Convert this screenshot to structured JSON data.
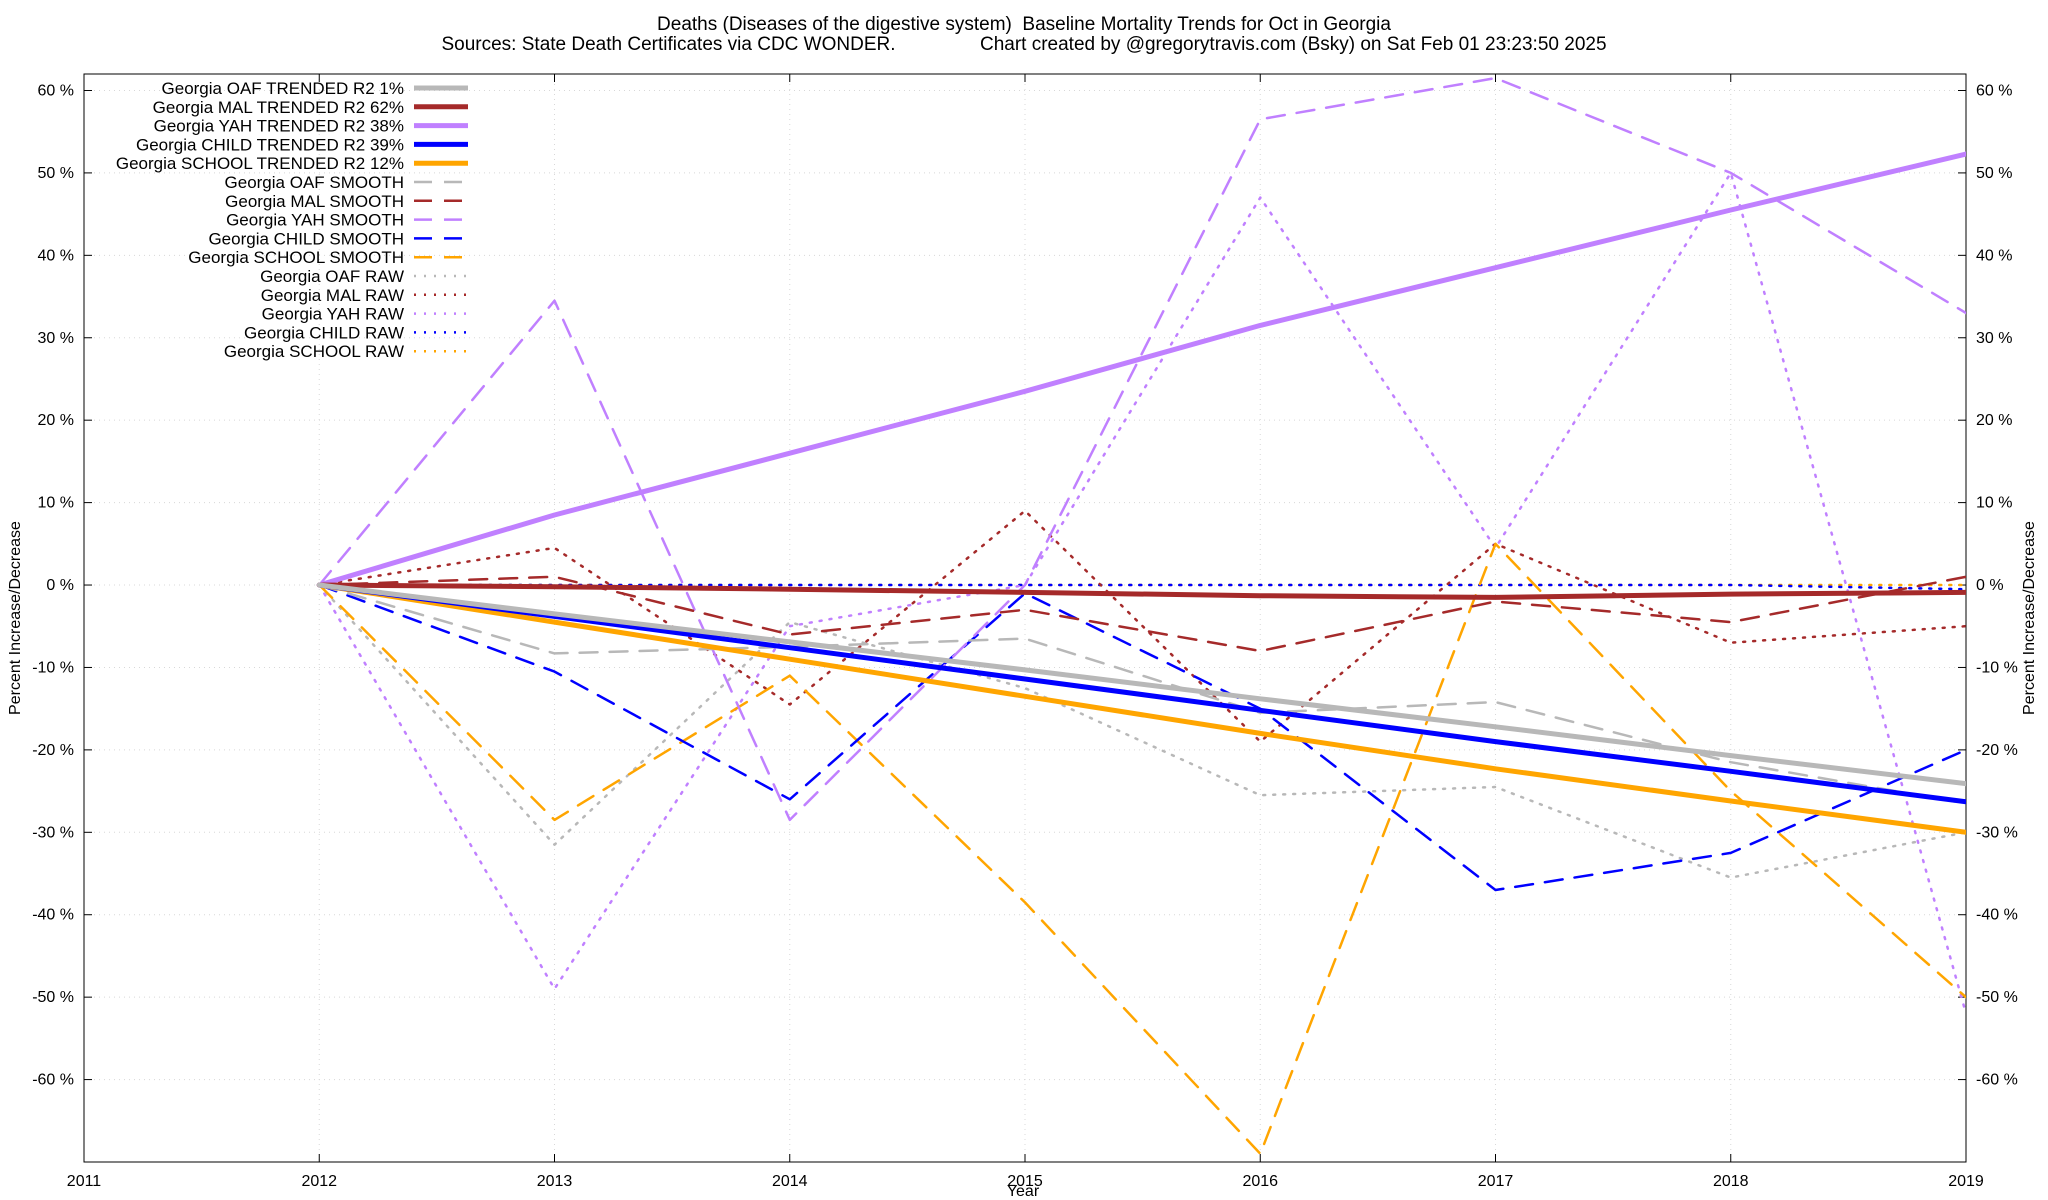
{
  "chart_data": {
    "type": "line",
    "title": "Deaths (Diseases of the digestive system)  Baseline Mortality Trends for Oct in Georgia",
    "subtitle": "Sources: State Death Certificates via CDC WONDER.                Chart created by @gregorytravis.com (Bsky) on Sat Feb 01 23:23:50 2025",
    "xlabel": "Year",
    "ylabel": "Percent Increase/Decrease",
    "ylabel_right": "Percent Increase/Decrease",
    "xlim": [
      2011,
      2019
    ],
    "ylim": [
      -70,
      62
    ],
    "x_ticks": [
      2011,
      2012,
      2013,
      2014,
      2015,
      2016,
      2017,
      2018,
      2019
    ],
    "y_ticks": [
      60,
      50,
      40,
      30,
      20,
      10,
      0,
      -10,
      -20,
      -30,
      -40,
      -50,
      -60
    ],
    "y_tick_labels": [
      "60 %",
      "50 %",
      "40 %",
      "30 %",
      "20 %",
      "10 %",
      "0 %",
      "-10 %",
      "-20 %",
      "-30 %",
      "-40 %",
      "-50 %",
      "-60 %"
    ],
    "x_tick_labels": [
      "2011",
      "2012",
      "2013",
      "2014",
      "2015",
      "2016",
      "2017",
      "2018",
      "2019"
    ],
    "grid": true,
    "legend_position": "top-left",
    "x": [
      2012,
      2013,
      2014,
      2015,
      2016,
      2017,
      2018,
      2019
    ],
    "series": [
      {
        "name": "Georgia OAF TRENDED R2   1%",
        "color": "#b8b8b8",
        "style": "solid",
        "width": 5,
        "values": [
          0,
          -3.5,
          -6.9,
          -10.3,
          -13.8,
          -17.2,
          -20.7,
          -24.1
        ]
      },
      {
        "name": "Georgia MAL TRENDED R2  62%",
        "color": "#a52a2a",
        "style": "solid",
        "width": 5,
        "values": [
          0,
          -0.2,
          -0.5,
          -0.9,
          -1.3,
          -1.5,
          -1.1,
          -0.9
        ]
      },
      {
        "name": "Georgia YAH TRENDED R2  38%",
        "color": "#c080ff",
        "style": "solid",
        "width": 5,
        "values": [
          0,
          8.5,
          16.0,
          23.5,
          31.5,
          38.5,
          45.5,
          52.3
        ]
      },
      {
        "name": "Georgia CHILD TRENDED R2  39%",
        "color": "#0000ff",
        "style": "solid",
        "width": 5,
        "values": [
          0,
          -3.8,
          -7.6,
          -11.4,
          -15.2,
          -19.0,
          -22.6,
          -26.3
        ]
      },
      {
        "name": "Georgia SCHOOL TRENDED R2  12%",
        "color": "#ffa500",
        "style": "solid",
        "width": 5,
        "values": [
          0,
          -4.5,
          -9.0,
          -13.5,
          -18.0,
          -22.3,
          -26.2,
          -30.0
        ]
      },
      {
        "name": "Georgia OAF SMOOTH",
        "color": "#b8b8b8",
        "style": "dashed",
        "width": 2.5,
        "values": [
          0,
          -8.3,
          -7.5,
          -6.5,
          -15.5,
          -14.2,
          -21.5,
          -26.5
        ]
      },
      {
        "name": "Georgia MAL SMOOTH",
        "color": "#a52a2a",
        "style": "dashed",
        "width": 2.5,
        "values": [
          0,
          1.0,
          -6.0,
          -3.0,
          -8.0,
          -2.0,
          -4.5,
          1.0
        ]
      },
      {
        "name": "Georgia YAH SMOOTH",
        "color": "#c080ff",
        "style": "dashed",
        "width": 2.5,
        "values": [
          0,
          34.5,
          -28.5,
          0.0,
          56.5,
          61.5,
          50.0,
          33.0
        ]
      },
      {
        "name": "Georgia CHILD SMOOTH",
        "color": "#0000ff",
        "style": "dashed",
        "width": 2.5,
        "values": [
          0,
          -10.5,
          -26.0,
          -1.0,
          -15.0,
          -37.0,
          -32.5,
          -20.0
        ]
      },
      {
        "name": "Georgia SCHOOL SMOOTH",
        "color": "#ffa500",
        "style": "dashed",
        "width": 2.5,
        "values": [
          0,
          -28.5,
          -11.0,
          -38.5,
          -69.0,
          5.0,
          -25.0,
          -50.0
        ]
      },
      {
        "name": "Georgia OAF RAW",
        "color": "#b8b8b8",
        "style": "dotted",
        "width": 2.5,
        "values": [
          0,
          -31.5,
          -4.5,
          -12.5,
          -25.5,
          -24.5,
          -35.5,
          -30.0
        ]
      },
      {
        "name": "Georgia MAL RAW",
        "color": "#a52a2a",
        "style": "dotted",
        "width": 2.5,
        "values": [
          0,
          4.5,
          -14.5,
          9.0,
          -19.0,
          5.0,
          -7.0,
          -5.0
        ]
      },
      {
        "name": "Georgia YAH RAW",
        "color": "#c080ff",
        "style": "dotted",
        "width": 2.5,
        "values": [
          0,
          -49.0,
          -5.0,
          0.0,
          47.0,
          4.5,
          50.0,
          -52.0
        ]
      },
      {
        "name": "Georgia CHILD RAW",
        "color": "#0000ff",
        "style": "dotted",
        "width": 2.5,
        "values": [
          0,
          0.0,
          0.0,
          0.0,
          0.0,
          0.0,
          0.0,
          -0.5
        ]
      },
      {
        "name": "Georgia SCHOOL RAW",
        "color": "#ffa500",
        "style": "dotted",
        "width": 2.5,
        "values": [
          0,
          0.0,
          0.0,
          0.0,
          0.0,
          0.0,
          0.0,
          0.0
        ]
      }
    ]
  }
}
